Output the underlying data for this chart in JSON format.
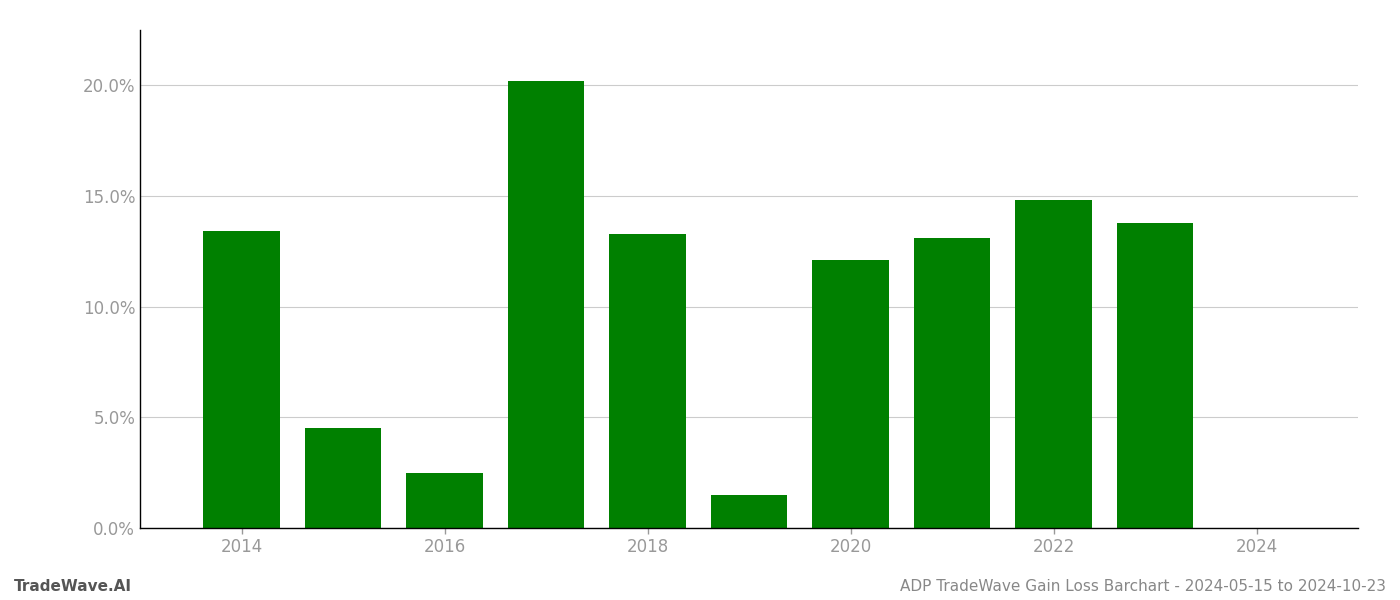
{
  "years": [
    2014,
    2015,
    2016,
    2017,
    2018,
    2019,
    2020,
    2021,
    2022,
    2023
  ],
  "values": [
    0.134,
    0.045,
    0.025,
    0.202,
    0.133,
    0.015,
    0.121,
    0.131,
    0.148,
    0.138
  ],
  "bar_color": "#008000",
  "background_color": "#ffffff",
  "grid_color": "#cccccc",
  "ytick_color": "#999999",
  "xtick_color": "#999999",
  "spine_color": "#000000",
  "ylim": [
    0,
    0.225
  ],
  "yticks": [
    0.0,
    0.05,
    0.1,
    0.15,
    0.2
  ],
  "xtick_labels": [
    "2014",
    "2016",
    "2018",
    "2020",
    "2022",
    "2024"
  ],
  "xtick_positions": [
    2014,
    2016,
    2018,
    2020,
    2022,
    2024
  ],
  "footer_left": "TradeWave.AI",
  "footer_right": "ADP TradeWave Gain Loss Barchart - 2024-05-15 to 2024-10-23",
  "bar_width": 0.75,
  "xlim": [
    2013.0,
    2025.0
  ]
}
